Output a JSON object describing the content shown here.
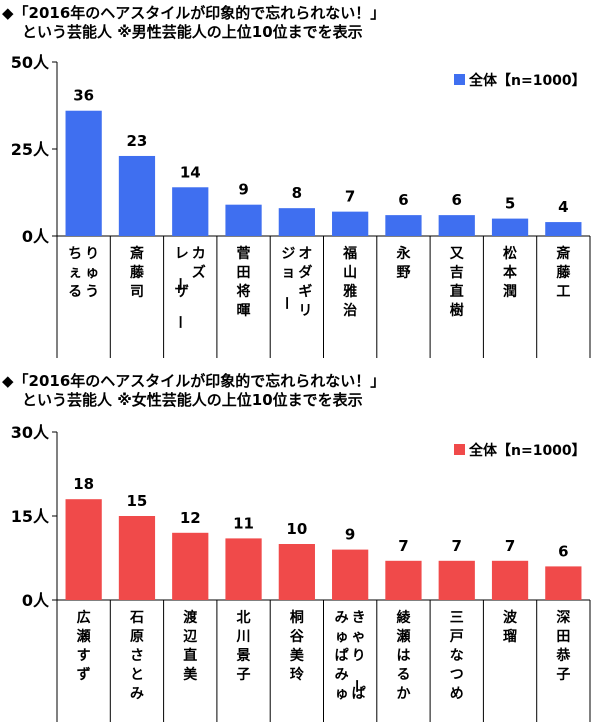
{
  "chart_data": [
    {
      "type": "bar",
      "title_line1": "◆「2016年のヘアスタイルが印象的で忘れられない！」",
      "title_line2": "という芸能人 ※男性芸能人の上位10位までを表示",
      "legend": "全体【n=1000】",
      "legend_position": "top-right",
      "color": "#3f6ff0",
      "ylim": [
        0,
        50
      ],
      "yticks": [
        0,
        25,
        50
      ],
      "ytick_labels": [
        "0人",
        "25人",
        "50人"
      ],
      "grid": false,
      "series": [
        {
          "name": "全体【n=1000】",
          "values": [
            36,
            23,
            14,
            9,
            8,
            7,
            6,
            6,
            5,
            4
          ]
        }
      ],
      "categories": [
        [
          "りゅう",
          "ちぇる"
        ],
        [
          "斎藤司"
        ],
        [
          "カズ",
          "レーザー"
        ],
        [
          "菅田将暉"
        ],
        [
          "オダギリ",
          "ジョー"
        ],
        [
          "福山雅治"
        ],
        [
          "永野"
        ],
        [
          "又吉直樹"
        ],
        [
          "松本潤"
        ],
        [
          "斎藤工"
        ]
      ]
    },
    {
      "type": "bar",
      "title_line1": "◆「2016年のヘアスタイルが印象的で忘れられない！」",
      "title_line2": "という芸能人 ※女性芸能人の上位10位までを表示",
      "legend": "全体【n=1000】",
      "legend_position": "top-right",
      "color": "#f04a4a",
      "ylim": [
        0,
        30
      ],
      "yticks": [
        0,
        15,
        30
      ],
      "ytick_labels": [
        "0人",
        "15人",
        "30人"
      ],
      "grid": false,
      "series": [
        {
          "name": "全体【n=1000】",
          "values": [
            18,
            15,
            12,
            11,
            10,
            9,
            7,
            7,
            7,
            6
          ]
        }
      ],
      "categories": [
        [
          "広瀬すず"
        ],
        [
          "石原さとみ"
        ],
        [
          "渡辺直美"
        ],
        [
          "北川景子"
        ],
        [
          "桐谷美玲"
        ],
        [
          "きゃりーぱ",
          "みゅぱみゅ"
        ],
        [
          "綾瀬はるか"
        ],
        [
          "三戸なつめ"
        ],
        [
          "波瑠"
        ],
        [
          "深田恭子"
        ]
      ]
    }
  ]
}
